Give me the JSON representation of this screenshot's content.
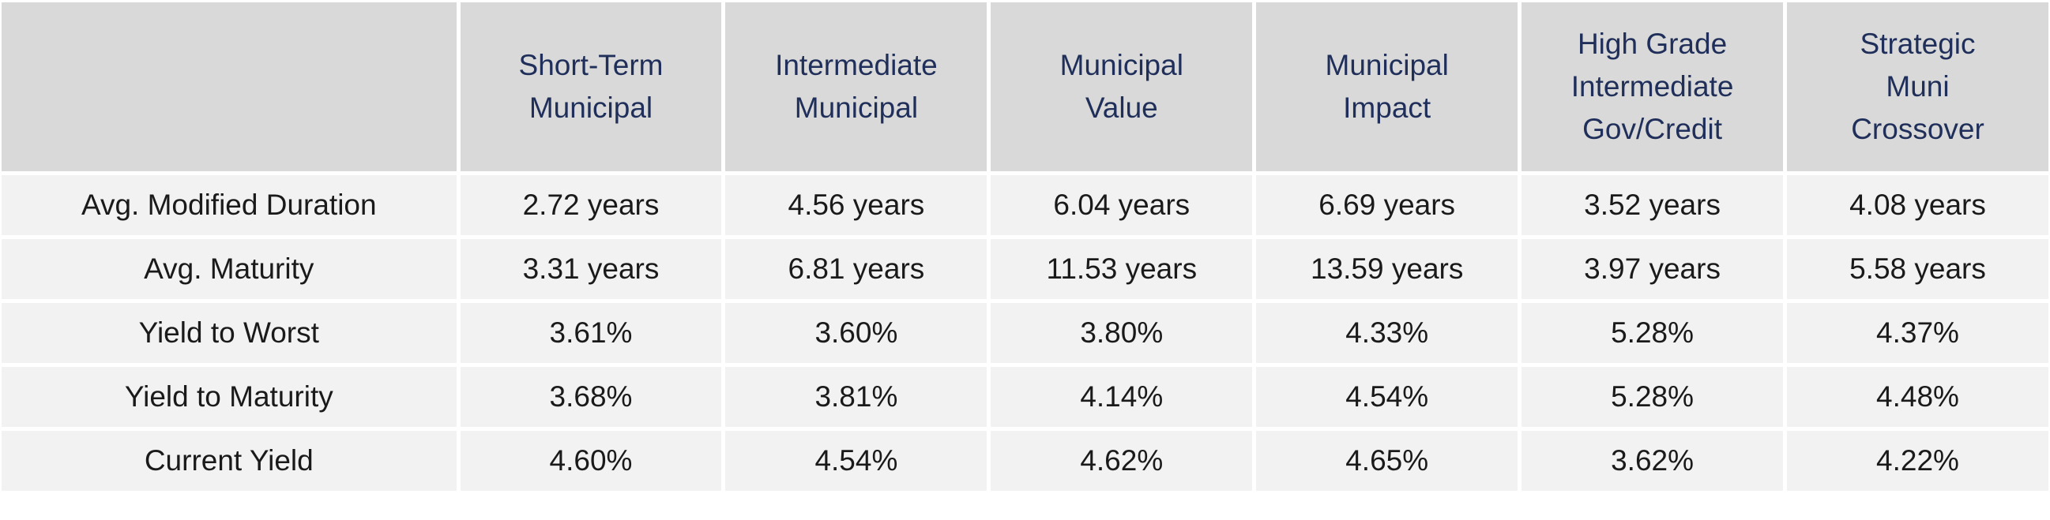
{
  "table": {
    "columns": [
      "",
      "Short-Term\nMunicipal",
      "Intermediate\nMunicipal",
      "Municipal\nValue",
      "Municipal\nImpact",
      "High Grade\nIntermediate\nGov/Credit",
      "Strategic\nMuni\nCrossover"
    ],
    "rows": [
      {
        "label": "Avg. Modified Duration",
        "values": [
          "2.72 years",
          "4.56 years",
          "6.04 years",
          "6.69 years",
          "3.52 years",
          "4.08 years"
        ]
      },
      {
        "label": "Avg. Maturity",
        "values": [
          "3.31 years",
          "6.81 years",
          "11.53 years",
          "13.59 years",
          "3.97 years",
          "5.58 years"
        ]
      },
      {
        "label": "Yield to Worst",
        "values": [
          "3.61%",
          "3.60%",
          "3.80%",
          "4.33%",
          "5.28%",
          "4.37%"
        ]
      },
      {
        "label": "Yield to Maturity",
        "values": [
          "3.68%",
          "3.81%",
          "4.14%",
          "4.54%",
          "5.28%",
          "4.48%"
        ]
      },
      {
        "label": "Current Yield",
        "values": [
          "4.60%",
          "4.54%",
          "4.62%",
          "4.65%",
          "3.62%",
          "4.22%"
        ]
      }
    ]
  },
  "colors": {
    "header_bg": "#d9d9d9",
    "header_text": "#1f2f5a",
    "row_bg": "#f2f2f2",
    "body_text": "#1a1a1a"
  }
}
